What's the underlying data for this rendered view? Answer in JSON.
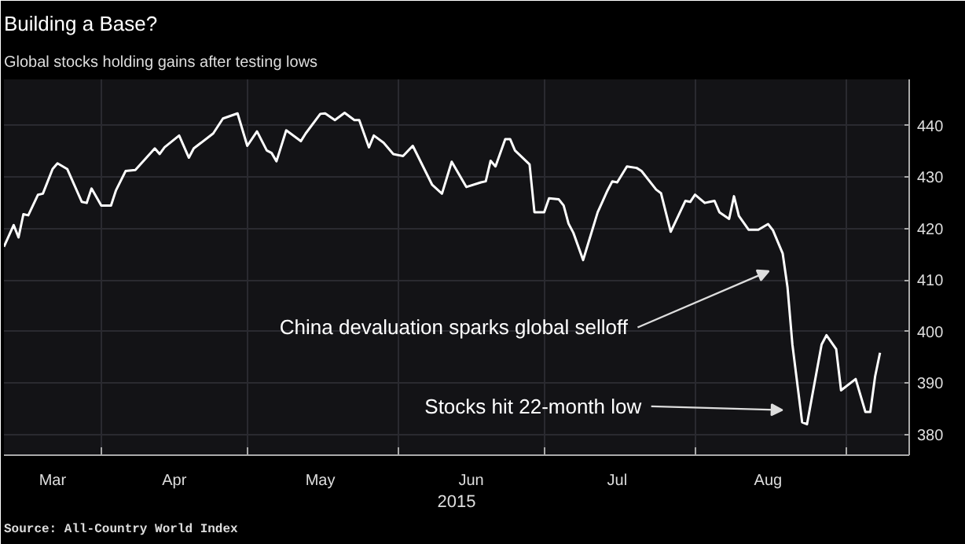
{
  "chart_data": {
    "type": "line",
    "title": "Building a Base?",
    "subtitle": "Global stocks holding gains after testing lows",
    "xlabel": "2015",
    "annotations": [
      "China devaluation sparks global selloff",
      "Stocks hit 22-month low",
      "Source: All-Country World Index"
    ],
    "x": [
      "2015-03-12",
      "2015-03-14",
      "2015-03-15",
      "2015-03-16",
      "2015-03-17",
      "2015-03-19",
      "2015-03-20",
      "2015-03-22",
      "2015-03-23",
      "2015-03-25",
      "2015-03-28",
      "2015-03-29",
      "2015-03-30",
      "2015-04-01",
      "2015-04-03",
      "2015-04-04",
      "2015-04-06",
      "2015-04-08",
      "2015-04-12",
      "2015-04-13",
      "2015-04-14",
      "2015-04-17",
      "2015-04-19",
      "2015-04-20",
      "2015-04-24",
      "2015-04-26",
      "2015-04-29",
      "2015-05-01",
      "2015-05-03",
      "2015-05-05",
      "2015-05-06",
      "2015-05-07",
      "2015-05-09",
      "2015-05-12",
      "2015-05-13",
      "2015-05-16",
      "2015-05-17",
      "2015-05-19",
      "2015-05-21",
      "2015-05-23",
      "2015-05-24",
      "2015-05-26",
      "2015-05-27",
      "2015-05-29",
      "2015-05-31",
      "2015-06-02",
      "2015-06-04",
      "2015-06-08",
      "2015-06-10",
      "2015-06-12",
      "2015-06-15",
      "2015-06-18",
      "2015-06-19",
      "2015-06-20",
      "2015-06-21",
      "2015-06-23",
      "2015-06-24",
      "2015-06-25",
      "2015-06-28",
      "2015-06-29",
      "2015-07-01",
      "2015-07-02",
      "2015-07-04",
      "2015-07-05",
      "2015-07-06",
      "2015-07-07",
      "2015-07-09",
      "2015-07-10",
      "2015-07-12",
      "2015-07-14",
      "2015-07-15",
      "2015-07-16",
      "2015-07-18",
      "2015-07-20",
      "2015-07-21",
      "2015-07-24",
      "2015-07-25",
      "2015-07-27",
      "2015-07-30",
      "2015-07-31",
      "2015-08-01",
      "2015-08-03",
      "2015-08-04",
      "2015-08-05",
      "2015-08-06",
      "2015-08-08",
      "2015-08-09",
      "2015-08-10",
      "2015-08-12",
      "2015-08-14",
      "2015-08-16",
      "2015-08-17",
      "2015-08-19",
      "2015-08-20",
      "2015-08-21",
      "2015-08-23",
      "2015-08-24",
      "2015-08-27",
      "2015-08-28",
      "2015-08-30",
      "2015-08-31",
      "2015-09-03",
      "2015-09-05",
      "2015-09-06",
      "2015-09-07",
      "2015-09-08"
    ],
    "series": [
      {
        "color": "#ffffff",
        "values": [
          416.5,
          420.7,
          418.3,
          422.8,
          422.6,
          426.6,
          426.8,
          431.6,
          432.7,
          431.6,
          425.2,
          425,
          427.8,
          424.5,
          424.5,
          427.4,
          431.2,
          431.4,
          435.6,
          434.5,
          435.8,
          438.1,
          433.8,
          435.6,
          438.5,
          441.4,
          442.4,
          436.1,
          438.9,
          435.2,
          434.7,
          433.1,
          439.1,
          437,
          438.5,
          442.3,
          442.4,
          441.1,
          442.5,
          441.1,
          441.1,
          435.8,
          438.1,
          436.7,
          434.5,
          434.1,
          436.1,
          428.5,
          426.8,
          433,
          428.1,
          429,
          429.2,
          433.2,
          432.1,
          437.4,
          437.4,
          435.2,
          432.5,
          423.2,
          423.2,
          425.9,
          425.7,
          424.5,
          421,
          419.2,
          413.9,
          417,
          423.2,
          427.4,
          429.2,
          429,
          432.1,
          431.8,
          431.2,
          427.6,
          426.9,
          419.4,
          425.4,
          425.2,
          426.6,
          425,
          425.2,
          425.4,
          423.2,
          421.9,
          426.3,
          422.5,
          419.8,
          419.8,
          420.9,
          419.7,
          415.2,
          408.6,
          397.5,
          382.4,
          382,
          397.5,
          399.3,
          396.6,
          388.6,
          390.8,
          384.4,
          384.4,
          391.3,
          395.9
        ]
      }
    ],
    "xlim": [
      "2015-03-12",
      "2015-09-14"
    ],
    "ylim": [
      376,
      449
    ],
    "yticks": [
      380,
      390,
      400,
      410,
      420,
      430,
      440
    ],
    "xticks": [
      {
        "value": "2015-03-22",
        "label": "Mar"
      },
      {
        "value": "2015-04-01",
        "label": null
      },
      {
        "value": "2015-04-16",
        "label": "Apr"
      },
      {
        "value": "2015-05-01",
        "label": null
      },
      {
        "value": "2015-05-16",
        "label": "May"
      },
      {
        "value": "2015-06-01",
        "label": null
      },
      {
        "value": "2015-06-16",
        "label": "Jun"
      },
      {
        "value": "2015-07-01",
        "label": null
      },
      {
        "value": "2015-07-16",
        "label": "Jul"
      },
      {
        "value": "2015-08-01",
        "label": null
      },
      {
        "value": "2015-08-16",
        "label": "Aug"
      },
      {
        "value": "2015-09-01",
        "label": null
      }
    ],
    "grid": true,
    "line_style": "solid",
    "marker": "none"
  }
}
